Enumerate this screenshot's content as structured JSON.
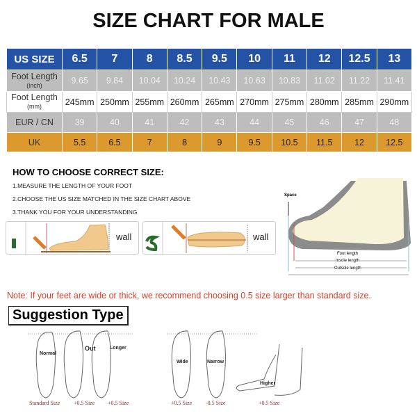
{
  "title": "SIZE CHART FOR MALE",
  "table": {
    "rows": [
      {
        "label": "US SIZE",
        "values": [
          "6.5",
          "7",
          "8",
          "8.5",
          "9.5",
          "10",
          "11",
          "12",
          "12.5",
          "13"
        ]
      },
      {
        "label": "Foot Length",
        "sublabel": "(inch)",
        "values": [
          "9.65",
          "9.84",
          "10.04",
          "10.24",
          "10.43",
          "10.63",
          "10.83",
          "11.02",
          "11.22",
          "11.41"
        ]
      },
      {
        "label": "Foot Length",
        "sublabel": "(mm)",
        "values": [
          "245mm",
          "250mm",
          "255mm",
          "260mm",
          "265mm",
          "270mm",
          "275mm",
          "280mm",
          "285mm",
          "290mm"
        ]
      },
      {
        "label": "EUR / CN",
        "values": [
          "39",
          "40",
          "41",
          "42",
          "43",
          "44",
          "45",
          "46",
          "47",
          "48"
        ]
      },
      {
        "label": "UK",
        "values": [
          "5.5",
          "6.5",
          "7",
          "8",
          "9",
          "9.5",
          "10.5",
          "11.5",
          "12",
          "12.5"
        ]
      }
    ],
    "colors": {
      "header": "#2453a6",
      "gray": "#bdbdbd",
      "uk": "#dc9a2e"
    }
  },
  "howto": {
    "title": "HOW TO CHOOSE CORRECT SIZE:",
    "steps": [
      "1.MEASURE THE LENGTH OF YOUR FOOT",
      "2.CHOOSE THE US SIZE MATCHED IN THE SIZE CHART ABOVE",
      "3.THANK YOU FOR YOUR UNDERSTANDING"
    ],
    "panels": [
      {
        "number": "1",
        "wall": "wall"
      },
      {
        "number": "2",
        "wall": "wall"
      }
    ]
  },
  "shoe_diagram": {
    "space": "Space",
    "foot_length": "Foot length",
    "insole_length": "Insole length",
    "outsole_length": "Outsole length"
  },
  "note": "Note: If your feet are wide or thick, we recommend choosing 0.5 size larger than standard size.",
  "suggestion": {
    "title": "Suggestion Type",
    "types": [
      {
        "label": "Normal",
        "size": "Standard Size"
      },
      {
        "label": "Out",
        "size": "+0.5 Size"
      },
      {
        "label": "Longer",
        "size": "+0.5 Size"
      },
      {
        "label": "Wide",
        "size": "+0.5 Size"
      },
      {
        "label": "Narrow",
        "size": "-0.5 Size"
      },
      {
        "label": "Higher",
        "size": "+0.5 Size"
      }
    ]
  }
}
